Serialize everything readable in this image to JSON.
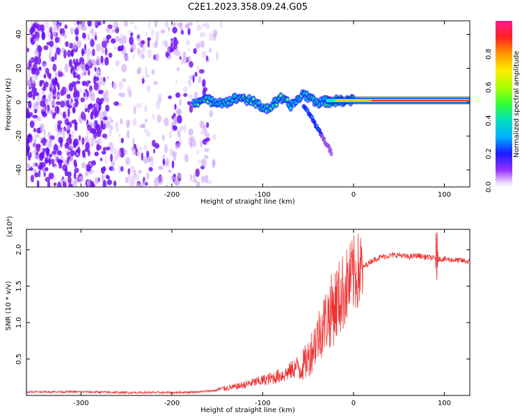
{
  "title": "C2E1.2023.358.09.24.G05",
  "chart_data": [
    {
      "type": "heatmap",
      "xlabel": "Height of straight line (km)",
      "ylabel": "Frequency (Hz)",
      "xlim": [
        -360,
        128
      ],
      "ylim": [
        -50,
        48
      ],
      "x_ticks": [
        -300,
        -200,
        -100,
        0,
        100
      ],
      "y_ticks": [
        -40,
        -20,
        0,
        20,
        40
      ],
      "colorbar": {
        "label": "Normalized spectral amplitude",
        "range": [
          0,
          1
        ],
        "ticks": [
          "0.0",
          "0.2",
          "0.4",
          "0.6",
          "0.8"
        ]
      },
      "features": {
        "noise_region_x": [
          -360,
          -150
        ],
        "signal_track": [
          {
            "x": -176,
            "f": 0.5
          },
          {
            "x": -160,
            "f": 1
          },
          {
            "x": -140,
            "f": 0
          },
          {
            "x": -125,
            "f": 3
          },
          {
            "x": -110,
            "f": 0
          },
          {
            "x": -95,
            "f": -4
          },
          {
            "x": -80,
            "f": 2
          },
          {
            "x": -68,
            "f": -2
          },
          {
            "x": -55,
            "f": 5
          },
          {
            "x": -40,
            "f": 0
          },
          {
            "x": -25,
            "f": 0.5
          },
          {
            "x": -10,
            "f": 1
          },
          {
            "x": 0,
            "f": 1
          },
          {
            "x": 20,
            "f": 1
          },
          {
            "x": 60,
            "f": 1
          },
          {
            "x": 90,
            "f": 2
          },
          {
            "x": 128,
            "f": 1
          }
        ],
        "descending_branch": [
          {
            "x": -55,
            "f": -2
          },
          {
            "x": -45,
            "f": -10
          },
          {
            "x": -35,
            "f": -20
          },
          {
            "x": -24,
            "f": -30
          }
        ]
      }
    },
    {
      "type": "line",
      "xlabel": "Height of straight line (km)",
      "ylabel": "SNR (10 * v/v)",
      "y_multiplier": "(x10⁴)",
      "xlim": [
        -360,
        128
      ],
      "ylim": [
        0,
        2.28
      ],
      "x_ticks": [
        -300,
        -200,
        -100,
        0,
        100
      ],
      "y_ticks": [
        "0.5",
        "1.0",
        "1.5",
        "2.0"
      ],
      "color": "#ee3333",
      "series": [
        {
          "x": [
            -360,
            -300,
            -250,
            -200,
            -170,
            -150,
            -130,
            -110,
            -90,
            -75,
            -60,
            -50,
            -40,
            -30,
            -20,
            -10,
            0,
            10,
            20,
            30,
            40,
            50,
            60,
            70,
            80,
            90,
            100,
            110,
            120,
            128
          ],
          "values": [
            0.05,
            0.05,
            0.04,
            0.04,
            0.05,
            0.07,
            0.1,
            0.15,
            0.2,
            0.25,
            0.35,
            0.5,
            0.8,
            1.05,
            1.25,
            1.45,
            1.65,
            1.75,
            1.85,
            1.9,
            1.92,
            1.93,
            1.9,
            1.92,
            1.9,
            1.88,
            1.87,
            1.86,
            1.85,
            1.83
          ]
        }
      ]
    }
  ]
}
